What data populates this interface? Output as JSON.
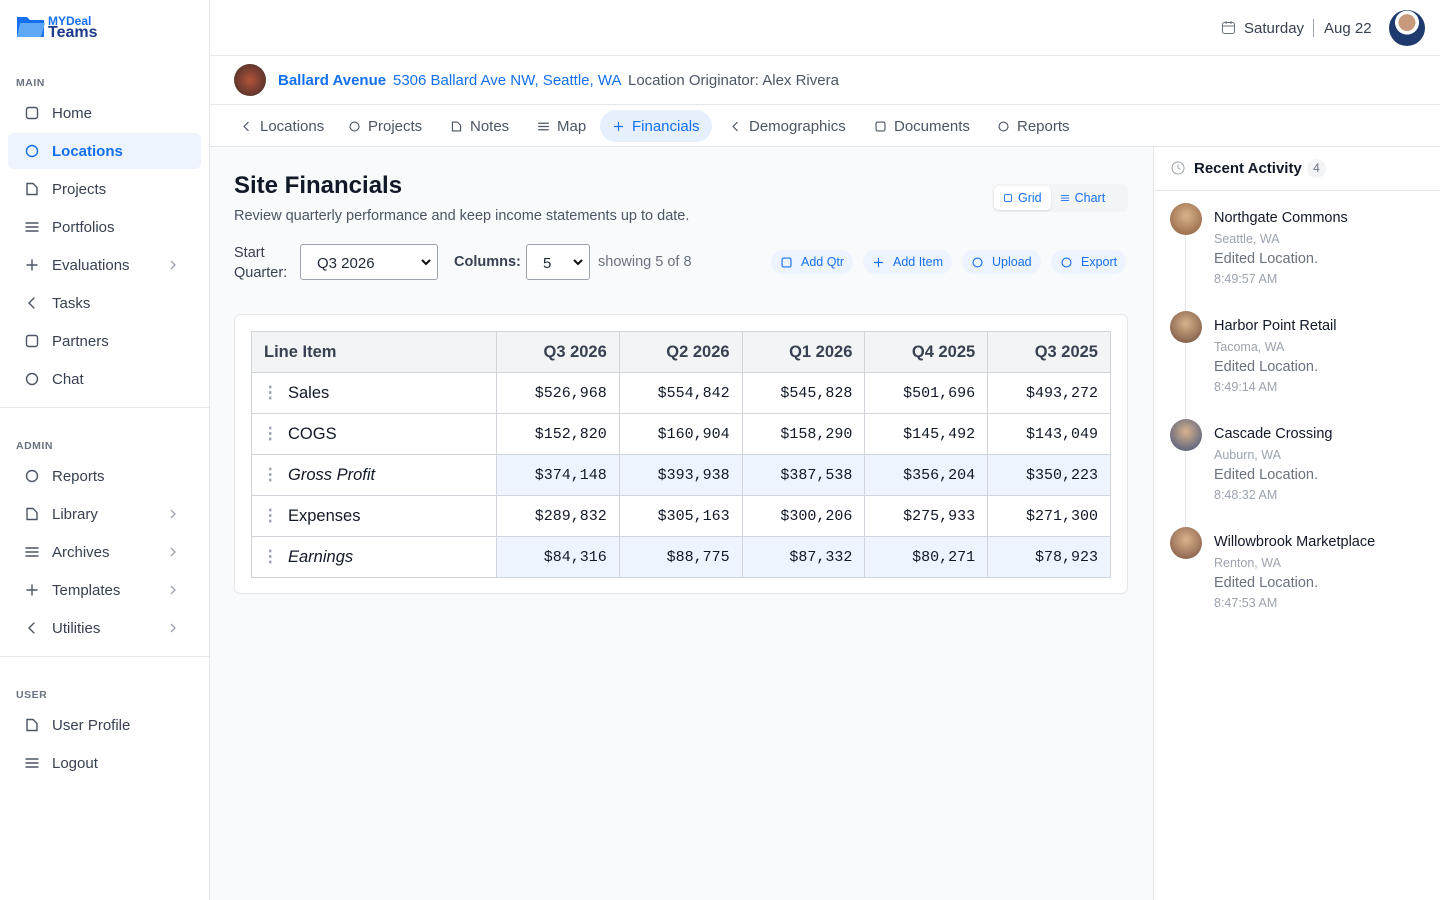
{
  "logo": {
    "line1": "MYDeal",
    "line2": "Teams"
  },
  "header": {
    "day": "Saturday",
    "date": "Aug 22"
  },
  "sidebar": [
    {
      "title": "MAIN",
      "items": [
        {
          "label": "Home"
        },
        {
          "label": "Locations",
          "active": true
        },
        {
          "label": "Projects"
        },
        {
          "label": "Portfolios"
        },
        {
          "label": "Evaluations",
          "submenu": true
        },
        {
          "label": "Tasks"
        },
        {
          "label": "Partners"
        },
        {
          "label": "Chat"
        }
      ]
    },
    {
      "title": "ADMIN",
      "items": [
        {
          "label": "Reports"
        },
        {
          "label": "Library",
          "submenu": true
        },
        {
          "label": "Archives",
          "submenu": true
        },
        {
          "label": "Templates",
          "submenu": true
        },
        {
          "label": "Utilities",
          "submenu": true
        }
      ]
    },
    {
      "title": "USER",
      "items": [
        {
          "label": "User Profile"
        },
        {
          "label": "Logout"
        }
      ]
    }
  ],
  "location": {
    "name": "Ballard Avenue",
    "address": "5306 Ballard Ave NW, Seattle, WA",
    "originator": "Location Originator: Alex Rivera"
  },
  "tabs": {
    "items": [
      "Locations",
      "Projects",
      "Notes",
      "Map",
      "Financials",
      "Demographics",
      "Documents",
      "Reports"
    ],
    "active": 4
  },
  "financials": {
    "title": "Site Financials",
    "subtitle": "Review quarterly performance and keep income statements up to date.",
    "views": [
      "Grid",
      "Chart"
    ],
    "active_view": 0,
    "start_label": "Start Quarter:",
    "start_value": "Q3 2026",
    "columns_label": "Columns:",
    "columns_value": "5",
    "showing": "showing 5 of 8",
    "actions": [
      "Add Qtr",
      "Add Item",
      "Upload",
      "Export"
    ]
  },
  "table": {
    "columns": [
      "Line Item",
      "Q3 2026",
      "Q2 2026",
      "Q1 2026",
      "Q4 2025",
      "Q3 2025"
    ],
    "rows": [
      {
        "label": "Sales",
        "values": [
          "$526,968",
          "$554,842",
          "$545,828",
          "$501,696",
          "$493,272"
        ],
        "highlight": false
      },
      {
        "label": "COGS",
        "values": [
          "$152,820",
          "$160,904",
          "$158,290",
          "$145,492",
          "$143,049"
        ],
        "highlight": false
      },
      {
        "label": "Gross Profit",
        "values": [
          "$374,148",
          "$393,938",
          "$387,538",
          "$356,204",
          "$350,223"
        ],
        "highlight": true
      },
      {
        "label": "Expenses",
        "values": [
          "$289,832",
          "$305,163",
          "$300,206",
          "$275,933",
          "$271,300"
        ],
        "highlight": false
      },
      {
        "label": "Earnings",
        "values": [
          "$84,316",
          "$88,775",
          "$87,332",
          "$80,271",
          "$78,923"
        ],
        "highlight": true
      }
    ]
  },
  "activity": {
    "title": "Recent Activity",
    "count": 4,
    "items": [
      {
        "name": "Northgate Commons",
        "place": "Seattle, WA",
        "action": "Edited Location.",
        "time": "8:49:57 AM"
      },
      {
        "name": "Harbor Point Retail",
        "place": "Tacoma, WA",
        "action": "Edited Location.",
        "time": "8:49:14 AM"
      },
      {
        "name": "Cascade Crossing",
        "place": "Auburn, WA",
        "action": "Edited Location.",
        "time": "8:48:32 AM"
      },
      {
        "name": "Willowbrook Marketplace",
        "place": "Renton, WA",
        "action": "Edited Location.",
        "time": "8:47:53 AM"
      }
    ]
  }
}
